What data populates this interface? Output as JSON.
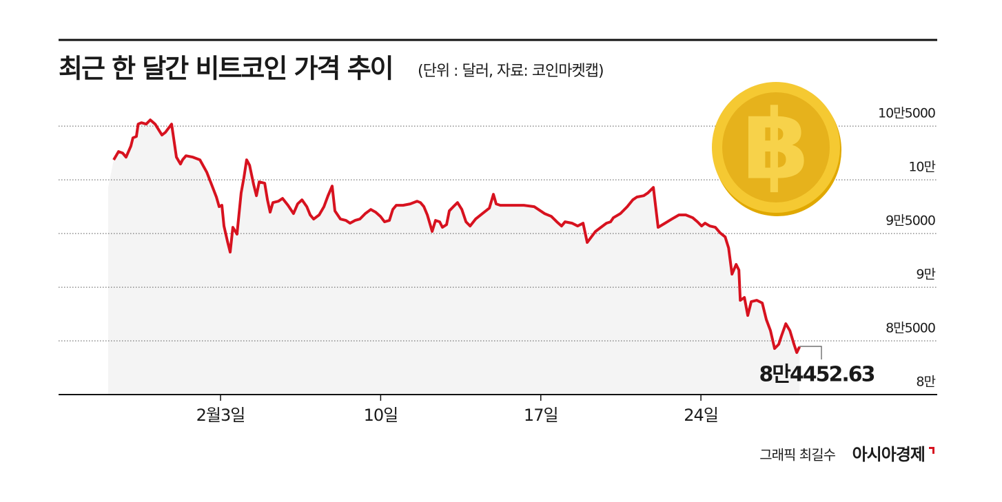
{
  "chart_data": {
    "type": "line",
    "title": "최근 한 달간 비트코인 가격 추이",
    "subtitle": "(단위 : 달러, 자료: 코인마켓캡)",
    "annotation": "8만4452.63",
    "credit": "그래픽 최길수",
    "publisher": "아시아경제",
    "color": "#d7121f",
    "area_color": "#f4f4f4",
    "grid": true,
    "xlim": [
      -4.08,
      34.33
    ],
    "xticks": [
      {
        "value": 3,
        "label": "2월3일"
      },
      {
        "value": 10,
        "label": "10일"
      },
      {
        "value": 17,
        "label": "17일"
      },
      {
        "value": 24,
        "label": "24일"
      }
    ],
    "ylim": [
      80000,
      107000
    ],
    "yticks": [
      {
        "value": 80000,
        "label": "8만"
      },
      {
        "value": 85000,
        "label": "8만5000"
      },
      {
        "value": 90000,
        "label": "9만"
      },
      {
        "value": 95000,
        "label": "9만5000"
      },
      {
        "value": 100000,
        "label": "10만"
      },
      {
        "value": 105000,
        "label": "10만5000"
      }
    ],
    "x": [
      -1.67,
      -1.46,
      -1.28,
      -1.13,
      -0.92,
      -0.83,
      -0.68,
      -0.6,
      -0.46,
      -0.25,
      -0.07,
      0.14,
      0.44,
      0.59,
      0.86,
      1.07,
      1.25,
      1.34,
      1.49,
      1.79,
      2.1,
      2.4,
      2.61,
      2.82,
      2.94,
      3.06,
      3.15,
      3.3,
      3.42,
      3.54,
      3.72,
      3.9,
      4.02,
      4.14,
      4.27,
      4.45,
      4.57,
      4.69,
      4.93,
      5.05,
      5.17,
      5.29,
      5.53,
      5.71,
      5.95,
      6.19,
      6.37,
      6.56,
      6.77,
      6.92,
      7.07,
      7.31,
      7.52,
      7.7,
      7.88,
      8.0,
      8.24,
      8.48,
      8.66,
      8.88,
      9.09,
      9.33,
      9.57,
      9.78,
      9.99,
      10.17,
      10.38,
      10.53,
      10.68,
      10.98,
      11.29,
      11.59,
      11.74,
      11.89,
      12.04,
      12.25,
      12.4,
      12.58,
      12.7,
      12.88,
      13.0,
      13.18,
      13.36,
      13.55,
      13.73,
      13.91,
      14.15,
      14.45,
      14.75,
      14.93,
      15.05,
      15.23,
      15.65,
      16.26,
      16.71,
      17.16,
      17.46,
      17.7,
      17.91,
      18.06,
      18.37,
      18.61,
      18.85,
      19.03,
      19.21,
      19.39,
      19.63,
      19.87,
      20.05,
      20.17,
      20.48,
      20.78,
      21.02,
      21.2,
      21.5,
      21.68,
      21.92,
      22.13,
      22.43,
      22.73,
      23.04,
      23.34,
      23.64,
      23.85,
      24.03,
      24.18,
      24.39,
      24.63,
      24.84,
      25.06,
      25.21,
      25.36,
      25.54,
      25.66,
      25.72,
      25.9,
      26.05,
      26.2,
      26.44,
      26.68,
      26.86,
      27.04,
      27.22,
      27.4,
      27.52,
      27.71,
      27.89,
      28.07,
      28.19,
      28.31
    ],
    "values": [
      101860,
      102630,
      102500,
      102110,
      103140,
      103910,
      104040,
      105190,
      105320,
      105190,
      105580,
      105190,
      104170,
      104420,
      105190,
      102110,
      101470,
      101860,
      102240,
      102110,
      101860,
      100700,
      99550,
      98400,
      97500,
      97630,
      95700,
      94290,
      93270,
      95580,
      94940,
      98780,
      100190,
      101860,
      101350,
      99550,
      98520,
      99810,
      99680,
      98140,
      96990,
      97880,
      98010,
      98270,
      97630,
      96860,
      97760,
      98140,
      97500,
      96730,
      96350,
      96730,
      97500,
      98520,
      99420,
      97110,
      96350,
      96220,
      95960,
      96220,
      96350,
      96860,
      97240,
      96990,
      96600,
      96090,
      96220,
      97240,
      97630,
      97630,
      97760,
      98010,
      97880,
      97500,
      96730,
      95190,
      96220,
      96090,
      95580,
      95830,
      97110,
      97500,
      97880,
      97240,
      96090,
      95700,
      96350,
      96860,
      97370,
      98650,
      97760,
      97630,
      97630,
      97630,
      97500,
      96860,
      96600,
      96090,
      95700,
      96090,
      95960,
      95700,
      95960,
      94170,
      94680,
      95190,
      95580,
      95960,
      96090,
      96470,
      96860,
      97500,
      98140,
      98400,
      98520,
      98780,
      99290,
      95580,
      95960,
      96350,
      96730,
      96730,
      96470,
      96090,
      95700,
      95960,
      95700,
      95580,
      95060,
      94680,
      93650,
      91220,
      92120,
      91600,
      88780,
      89040,
      87370,
      88650,
      88780,
      88530,
      86990,
      85960,
      84290,
      84680,
      85450,
      86600,
      85960,
      84680,
      83910,
      84452.63
    ]
  }
}
